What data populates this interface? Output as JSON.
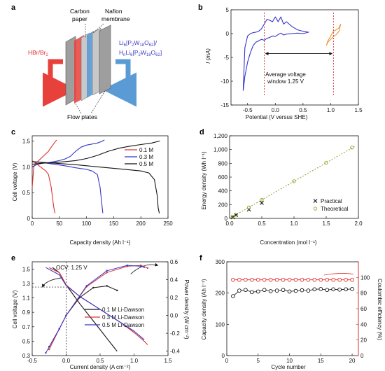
{
  "panels": {
    "a": {
      "letter": "a",
      "labels": {
        "carbon_paper": [
          "Carbon",
          "paper"
        ],
        "nafion": [
          "Nafion",
          "membrane"
        ],
        "hbr": "HBr/Br",
        "hbr_sub": "2",
        "li1": "Li",
        "li2": "H",
        "flow_plates": "Flow plates"
      },
      "colors": {
        "red": "#e8403a",
        "blue": "#5b9bd5",
        "label_blue": "#3a3ac8",
        "label_red": "#e03030"
      }
    },
    "b": {
      "letter": "b",
      "xlabel": "Potential (V versus SHE)",
      "ylabel": "I (mA)",
      "annotation": [
        "Average voltage",
        "window 1.25 V"
      ]
    },
    "c": {
      "letter": "c",
      "xlabel": "Capacity density (Ah l⁻¹)",
      "ylabel": "Cell voltage (V)"
    },
    "d": {
      "letter": "d",
      "xlabel": "Concentration (mol l⁻¹)",
      "ylabel": "Energy density (Wh l⁻¹)"
    },
    "e": {
      "letter": "e",
      "xlabel": "Current density (A cm⁻²)",
      "ylabel": "Cell voltage (V)",
      "y2label": "Power density (W cm⁻²)",
      "annotation": "OCV: 1.25 V"
    },
    "f": {
      "letter": "f",
      "xlabel": "Cycle number",
      "ylabel": "Capacity density (Ah l⁻¹)",
      "y2label": "Coulombic efficiency (%)"
    }
  },
  "chart_data": [
    {
      "id": "b",
      "type": "line",
      "xlim": [
        -0.8,
        1.5
      ],
      "ylim": [
        -15,
        5
      ],
      "xticks": [
        -0.5,
        0.0,
        0.5,
        1.0,
        1.5
      ],
      "xtick_labels": [
        "-0.5",
        "0.0",
        "0.5",
        "1.0",
        "1.5"
      ],
      "yticks": [
        5,
        0,
        -5,
        -10,
        -15
      ],
      "ytick_labels": [
        "5",
        "0",
        "-5",
        "-10",
        "-15"
      ],
      "series": [
        {
          "color": "#3535c8",
          "x": [
            -0.58,
            -0.55,
            -0.5,
            -0.45,
            -0.4,
            -0.35,
            -0.3,
            -0.25,
            -0.2,
            -0.15,
            -0.1,
            -0.05,
            0.0,
            0.05,
            0.1,
            0.15,
            0.2,
            0.3,
            0.4,
            0.5,
            0.6,
            0.5,
            0.4,
            0.3,
            0.2,
            0.15,
            0.1,
            0.05,
            0.0,
            -0.05,
            -0.1,
            -0.15,
            -0.2,
            -0.25,
            -0.3,
            -0.35,
            -0.4,
            -0.45,
            -0.5,
            -0.55,
            -0.58
          ],
          "y": [
            -12,
            -9,
            -6,
            -4,
            -2.5,
            -1.8,
            -1.5,
            -1.2,
            -1.4,
            -1.0,
            -0.8,
            -0.5,
            -0.6,
            -0.2,
            0.1,
            -0.3,
            -0.1,
            0.0,
            0.1,
            0.0,
            0.3,
            0.5,
            0.8,
            1.5,
            2.5,
            2.0,
            3.5,
            2.5,
            3.5,
            2.5,
            2.8,
            3.0,
            2.0,
            1.0,
            0.5,
            0.3,
            0.2,
            0.0,
            -0.5,
            -3,
            -12
          ]
        },
        {
          "color": "#f0923a",
          "x": [
            0.92,
            0.95,
            1.0,
            1.05,
            1.1,
            1.15,
            1.18,
            1.15,
            1.1,
            1.05,
            1.0,
            0.95,
            0.92
          ],
          "y": [
            -2.5,
            -1.8,
            -1.2,
            -0.6,
            -0.2,
            0.5,
            2.0,
            1.2,
            0.8,
            0.5,
            -0.5,
            -1.5,
            -2.5
          ]
        }
      ],
      "vlines": [
        {
          "x": -0.2,
          "color": "#d03030"
        },
        {
          "x": 1.05,
          "color": "#d03030"
        }
      ]
    },
    {
      "id": "c",
      "type": "line",
      "xlim": [
        0,
        250
      ],
      "ylim": [
        0,
        1.6
      ],
      "xticks": [
        0,
        50,
        100,
        150,
        200,
        250
      ],
      "xtick_labels": [
        "0",
        "50",
        "100",
        "150",
        "200",
        "250"
      ],
      "yticks": [
        0,
        0.5,
        1.0,
        1.5
      ],
      "ytick_labels": [
        "0",
        "0.5",
        "1.0",
        "1.5"
      ],
      "series": [
        {
          "name": "0.1 M",
          "color": "#e03030",
          "charge": {
            "x": [
              0,
              3,
              6,
              10,
              15,
              20,
              25,
              30,
              35,
              40,
              45
            ],
            "y": [
              0.6,
              1.0,
              1.06,
              1.1,
              1.15,
              1.2,
              1.25,
              1.3,
              1.38,
              1.45,
              1.52
            ]
          },
          "discharge": {
            "x": [
              0,
              5,
              10,
              15,
              20,
              25,
              30,
              35,
              38,
              40,
              42
            ],
            "y": [
              1.12,
              1.08,
              1.04,
              1.0,
              0.96,
              0.92,
              0.85,
              0.6,
              0.35,
              0.2,
              0.1
            ]
          }
        },
        {
          "name": "0.3 M",
          "color": "#3535c8",
          "charge": {
            "x": [
              0,
              10,
              20,
              30,
              40,
              50,
              60,
              70,
              80,
              90,
              100,
              110,
              120,
              128,
              133
            ],
            "y": [
              1.0,
              1.05,
              1.07,
              1.08,
              1.1,
              1.12,
              1.15,
              1.2,
              1.3,
              1.38,
              1.42,
              1.44,
              1.46,
              1.49,
              1.52
            ]
          },
          "discharge": {
            "x": [
              0,
              20,
              40,
              60,
              80,
              100,
              110,
              120,
              125,
              128,
              130
            ],
            "y": [
              1.1,
              1.08,
              1.05,
              1.02,
              0.98,
              0.95,
              0.92,
              0.85,
              0.6,
              0.3,
              0.1
            ]
          }
        },
        {
          "name": "0.5 M",
          "color": "#111111",
          "charge": {
            "x": [
              0,
              20,
              40,
              60,
              80,
              100,
              120,
              140,
              160,
              180,
              200,
              220,
              235
            ],
            "y": [
              1.05,
              1.07,
              1.08,
              1.1,
              1.12,
              1.16,
              1.22,
              1.3,
              1.36,
              1.4,
              1.43,
              1.46,
              1.5
            ]
          },
          "discharge": {
            "x": [
              0,
              40,
              80,
              120,
              160,
              200,
              215,
              225,
              230,
              232,
              234
            ],
            "y": [
              1.1,
              1.07,
              1.04,
              1.0,
              0.96,
              0.92,
              0.88,
              0.75,
              0.45,
              0.2,
              0.1
            ]
          }
        }
      ],
      "legend": "right"
    },
    {
      "id": "d",
      "type": "scatter",
      "xlim": [
        0,
        2.0
      ],
      "ylim": [
        0,
        1200
      ],
      "xticks": [
        0.0,
        0.5,
        1.0,
        1.5,
        2.0
      ],
      "xtick_labels": [
        "0.0",
        "0.5",
        "1.0",
        "1.5",
        "2.0"
      ],
      "yticks": [
        0,
        200,
        400,
        600,
        800,
        1000,
        1200
      ],
      "ytick_labels": [
        "0",
        "200",
        "400",
        "600",
        "800",
        "1,000",
        "1,200"
      ],
      "series": [
        {
          "name": "Practical",
          "marker": "x",
          "color": "#111111",
          "x": [
            0.05,
            0.1,
            0.3,
            0.5
          ],
          "y": [
            15,
            50,
            130,
            225
          ]
        },
        {
          "name": "Theoretical",
          "marker": "o",
          "color": "#8aa832",
          "x": [
            0.05,
            0.1,
            0.3,
            0.5,
            1.0,
            1.5,
            1.9
          ],
          "y": [
            25,
            55,
            160,
            270,
            540,
            810,
            1030
          ]
        }
      ],
      "fit": {
        "color": "#8aa832",
        "x": [
          0,
          1.95
        ],
        "y": [
          0,
          1050
        ]
      },
      "legend": "bottom-right"
    },
    {
      "id": "e",
      "type": "line",
      "xlim": [
        -0.5,
        1.5
      ],
      "ylim": [
        0.3,
        1.6
      ],
      "y2lim": [
        -0.45,
        0.6
      ],
      "xticks": [
        -0.5,
        0.0,
        0.5,
        1.0,
        1.5
      ],
      "xtick_labels": [
        "-0.5",
        "0.0",
        "0.5",
        "1.0",
        "1.5"
      ],
      "yticks": [
        0.3,
        0.5,
        0.7,
        0.9,
        1.1,
        1.3,
        1.5
      ],
      "ytick_labels": [
        "0.3",
        "0.5",
        "0.7",
        "0.9",
        "1.1",
        "1.3",
        "1.5"
      ],
      "y2ticks": [
        -0.4,
        -0.2,
        0.0,
        0.2,
        0.4,
        0.6
      ],
      "y2tick_labels": [
        "-0.4",
        "-0.2",
        "0.0",
        "0.2",
        "0.4",
        "0.6"
      ],
      "ocv": 1.25,
      "series": [
        {
          "name": "0.1 M Li-Dawson",
          "color": "#111111",
          "v": {
            "x": [
              -0.2,
              -0.1,
              0.0,
              0.1,
              0.2,
              0.3,
              0.4,
              0.5,
              0.6,
              0.7,
              0.75
            ],
            "y": [
              1.52,
              1.45,
              1.28,
              1.15,
              1.02,
              0.9,
              0.78,
              0.66,
              0.54,
              0.42,
              0.36
            ]
          },
          "p": {
            "x": [
              -0.25,
              -0.1,
              0.0,
              0.2,
              0.4,
              0.6,
              0.75
            ],
            "y": [
              -0.35,
              -0.15,
              0.0,
              0.2,
              0.31,
              0.33,
              0.28
            ]
          }
        },
        {
          "name": "0.3 M Li-Dawson",
          "color": "#e03030",
          "v": {
            "x": [
              -0.25,
              -0.1,
              0.0,
              0.2,
              0.4,
              0.6,
              0.8,
              1.0,
              1.15,
              1.2
            ],
            "y": [
              1.52,
              1.45,
              1.28,
              1.12,
              1.0,
              0.88,
              0.76,
              0.62,
              0.5,
              0.45
            ]
          },
          "p": {
            "x": [
              -0.25,
              -0.1,
              0.0,
              0.3,
              0.6,
              0.9,
              1.1,
              1.2
            ],
            "y": [
              -0.38,
              -0.15,
              0.0,
              0.32,
              0.48,
              0.55,
              0.56,
              0.53
            ]
          }
        },
        {
          "name": "0.5 M Li-Dawson",
          "color": "#3535c8",
          "v": {
            "x": [
              -0.3,
              -0.1,
              0.0,
              0.2,
              0.4,
              0.6,
              0.8,
              1.0,
              1.1,
              1.15
            ],
            "y": [
              1.52,
              1.42,
              1.27,
              1.12,
              1.0,
              0.88,
              0.76,
              0.64,
              0.56,
              0.52
            ]
          },
          "p": {
            "x": [
              -0.3,
              -0.1,
              0.0,
              0.3,
              0.6,
              0.9,
              1.1,
              1.15
            ],
            "y": [
              -0.42,
              -0.15,
              0.0,
              0.33,
              0.5,
              0.56,
              0.55,
              0.54
            ]
          }
        }
      ],
      "legend": "right"
    },
    {
      "id": "f",
      "type": "scatter",
      "xlim": [
        0,
        21
      ],
      "ylim": [
        0,
        300
      ],
      "y2lim": [
        0,
        120
      ],
      "xticks": [
        0,
        5,
        10,
        15,
        20
      ],
      "xtick_labels": [
        "0",
        "5",
        "10",
        "15",
        "20"
      ],
      "yticks": [
        0,
        100,
        200,
        300
      ],
      "ytick_labels": [
        "0",
        "100",
        "200",
        "300"
      ],
      "y2ticks": [
        0,
        20,
        40,
        60,
        80,
        100
      ],
      "y2tick_labels": [
        "0",
        "20",
        "40",
        "60",
        "80",
        "100"
      ],
      "capacity": {
        "color": "#111111",
        "x": [
          1,
          2,
          3,
          4,
          5,
          6,
          7,
          8,
          9,
          10,
          11,
          12,
          13,
          14,
          15,
          16,
          17,
          18,
          19,
          20
        ],
        "y": [
          190,
          208,
          210,
          203,
          205,
          210,
          206,
          208,
          210,
          205,
          207,
          209,
          208,
          212,
          213,
          210,
          212,
          211,
          212,
          213
        ]
      },
      "efficiency": {
        "color": "#e03030",
        "x": [
          1,
          2,
          3,
          4,
          5,
          6,
          7,
          8,
          9,
          10,
          11,
          12,
          13,
          14,
          15,
          16,
          17,
          18,
          19,
          20
        ],
        "y": [
          97,
          97,
          97,
          97,
          97,
          97,
          97,
          97,
          97,
          97,
          97,
          97,
          97,
          97,
          97,
          97,
          97,
          97,
          97,
          97
        ]
      }
    }
  ]
}
